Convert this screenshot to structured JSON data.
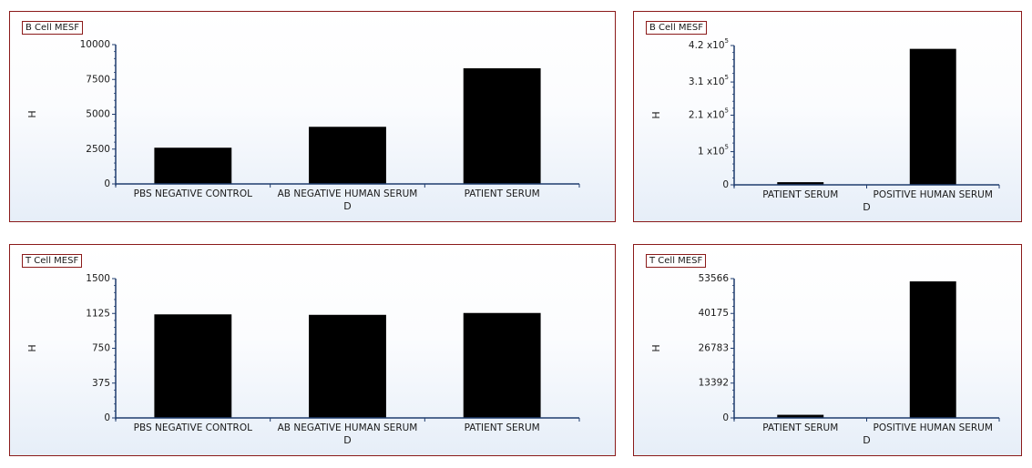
{
  "chart_data": [
    {
      "type": "bar",
      "title": "B Cell MESF",
      "xlabel": "D",
      "ylabel": "H",
      "categories": [
        "PBS NEGATIVE CONTROL",
        "AB NEGATIVE HUMAN SERUM",
        "PATIENT SERUM"
      ],
      "values": [
        2600,
        4100,
        8300
      ],
      "ylim": [
        0,
        10000
      ],
      "yticks": [
        0,
        2500,
        5000,
        7500,
        10000
      ],
      "ytick_labels": [
        "0",
        "2500",
        "5000",
        "7500",
        "10000"
      ],
      "bar_color": "#000000",
      "axis_color": "#1f3c6e"
    },
    {
      "type": "bar",
      "title": "B Cell MESF",
      "xlabel": "D",
      "ylabel": "H",
      "categories": [
        "PATIENT SERUM",
        "POSITIVE HUMAN SERUM"
      ],
      "values": [
        8000,
        410000
      ],
      "ylim": [
        0,
        420000
      ],
      "yticks": [
        0,
        100000,
        210000,
        310000,
        420000
      ],
      "ytick_labels": [
        "0",
        "1 x10^5",
        "2.1 x10^5",
        "3.1 x10^5",
        "4.2 x10^5"
      ],
      "bar_color": "#000000",
      "axis_color": "#1f3c6e"
    },
    {
      "type": "bar",
      "title": "T Cell MESF",
      "xlabel": "D",
      "ylabel": "H",
      "categories": [
        "PBS NEGATIVE CONTROL",
        "AB NEGATIVE HUMAN SERUM",
        "PATIENT SERUM"
      ],
      "values": [
        1115,
        1110,
        1130
      ],
      "ylim": [
        0,
        1500
      ],
      "yticks": [
        0,
        375,
        750,
        1125,
        1500
      ],
      "ytick_labels": [
        "0",
        "375",
        "750",
        "1125",
        "1500"
      ],
      "bar_color": "#000000",
      "axis_color": "#1f3c6e"
    },
    {
      "type": "bar",
      "title": "T Cell MESF",
      "xlabel": "D",
      "ylabel": "H",
      "categories": [
        "PATIENT SERUM",
        "POSITIVE HUMAN SERUM"
      ],
      "values": [
        1200,
        52500
      ],
      "ylim": [
        0,
        53566
      ],
      "yticks": [
        0,
        13392,
        26783,
        40175,
        53566
      ],
      "ytick_labels": [
        "0",
        "13392",
        "26783",
        "40175",
        "53566"
      ],
      "bar_color": "#000000",
      "axis_color": "#1f3c6e"
    }
  ]
}
